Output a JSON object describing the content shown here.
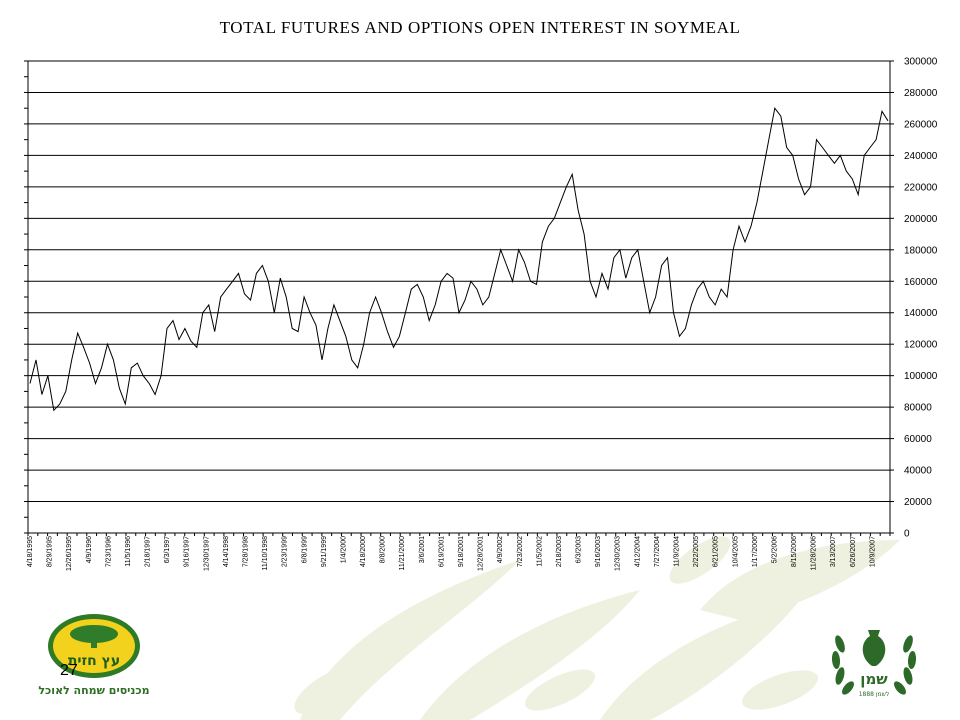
{
  "slide": {
    "page_number": "27",
    "left_logo": {
      "name": "עץ חזית",
      "tagline": "מכניסים שמחה לאוכל",
      "colors": {
        "ring": "#2e7a26",
        "fill": "#f2d21c",
        "tree": "#2f7d2a"
      }
    },
    "right_logo": {
      "name": "שמן",
      "subtitle": "1888 לשמן",
      "color": "#2d6a2a"
    },
    "background_color": "#ffffff",
    "decor_color": "#eef1df"
  },
  "chart_data": {
    "type": "line",
    "title": "TOTAL FUTURES AND OPTIONS OPEN INTEREST IN SOYMEAL",
    "xlabel": "",
    "ylabel": "",
    "ylim": [
      0,
      300000
    ],
    "y_axis_side": "right",
    "y_ticks": [
      "300000",
      "280000",
      "260000",
      "240000",
      "220000",
      "200000",
      "180000",
      "160000",
      "140000",
      "120000",
      "100000",
      "80000",
      "60000",
      "40000",
      "20000",
      "0"
    ],
    "grid": true,
    "legend": "none",
    "line_color": "#000000",
    "x_tick_labels": [
      "4/18/1995",
      "8/29/1995",
      "12/26/1995",
      "4/9/1996",
      "7/23/1996",
      "11/5/1996",
      "2/18/1997",
      "6/3/1997",
      "9/16/1997",
      "12/30/1997",
      "4/14/1998",
      "7/28/1998",
      "11/10/1998",
      "2/23/1999",
      "6/8/1999",
      "9/21/1999",
      "1/4/2000",
      "4/18/2000",
      "8/8/2000",
      "11/21/2000",
      "3/6/2001",
      "6/19/2001",
      "9/18/2001",
      "12/28/2001",
      "4/9/2002",
      "7/23/2002",
      "11/5/2002",
      "2/18/2003",
      "6/3/2003",
      "9/16/2003",
      "12/30/2003",
      "4/12/2004",
      "7/27/2004",
      "11/9/2004",
      "2/22/2005",
      "6/21/2005",
      "10/4/2005",
      "1/17/2006",
      "5/2/2006",
      "8/15/2006",
      "11/28/2006",
      "3/13/2007",
      "6/26/2007",
      "10/9/2007"
    ],
    "series": [
      {
        "values": [
          95000,
          110000,
          88000,
          100000,
          78000,
          82000,
          90000,
          110000,
          127000,
          118000,
          108000,
          95000,
          105000,
          120000,
          110000,
          92000,
          82000,
          105000,
          108000,
          100000,
          95000,
          88000,
          100000,
          130000,
          135000,
          123000,
          130000,
          122000,
          118000,
          140000,
          145000,
          128000,
          150000,
          155000,
          160000,
          165000,
          152000,
          148000,
          165000,
          170000,
          160000,
          140000,
          162000,
          150000,
          130000,
          128000,
          150000,
          140000,
          132000,
          110000,
          130000,
          145000,
          135000,
          125000,
          110000,
          105000,
          120000,
          140000,
          150000,
          140000,
          128000,
          118000,
          125000,
          140000,
          155000,
          158000,
          150000,
          135000,
          145000,
          160000,
          165000,
          162000,
          140000,
          148000,
          160000,
          155000,
          145000,
          150000,
          165000,
          180000,
          170000,
          160000,
          180000,
          172000,
          160000,
          158000,
          185000,
          195000,
          200000,
          210000,
          220000,
          228000,
          205000,
          190000,
          160000,
          150000,
          165000,
          155000,
          175000,
          180000,
          162000,
          175000,
          180000,
          160000,
          140000,
          150000,
          170000,
          175000,
          140000,
          125000,
          130000,
          145000,
          155000,
          160000,
          150000,
          145000,
          155000,
          150000,
          180000,
          195000,
          185000,
          195000,
          210000,
          230000,
          250000,
          270000,
          265000,
          245000,
          240000,
          225000,
          215000,
          220000,
          250000,
          245000,
          240000,
          235000,
          240000,
          230000,
          225000,
          215000,
          240000,
          245000,
          250000,
          268000,
          262000
        ]
      }
    ]
  }
}
